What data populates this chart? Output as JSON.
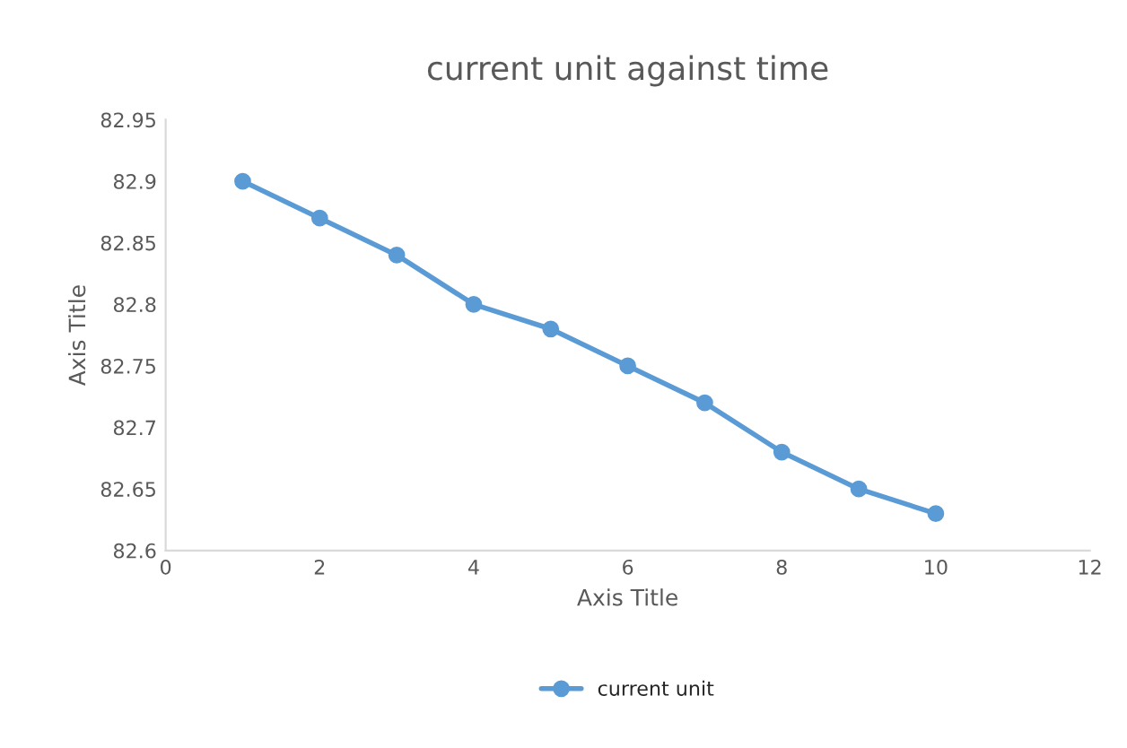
{
  "chart_data": {
    "type": "line",
    "title": "current unit against time",
    "xlabel": "Axis Title",
    "ylabel": "Axis Title",
    "x": [
      1,
      2,
      3,
      4,
      5,
      6,
      7,
      8,
      9,
      10
    ],
    "series": [
      {
        "name": "current unit",
        "color": "#5b9bd5",
        "values": [
          82.9,
          82.87,
          82.84,
          82.8,
          82.78,
          82.75,
          82.72,
          82.68,
          82.65,
          82.63
        ]
      }
    ],
    "xlim": [
      0,
      12
    ],
    "xticks": [
      0,
      2,
      4,
      6,
      8,
      10,
      12
    ],
    "ylim": [
      82.6,
      82.95
    ],
    "yticks": [
      82.6,
      82.65,
      82.7,
      82.75,
      82.8,
      82.85,
      82.9,
      82.95
    ],
    "grid": false,
    "legend": "bottom",
    "marker": "circle",
    "line_style": "solid"
  }
}
